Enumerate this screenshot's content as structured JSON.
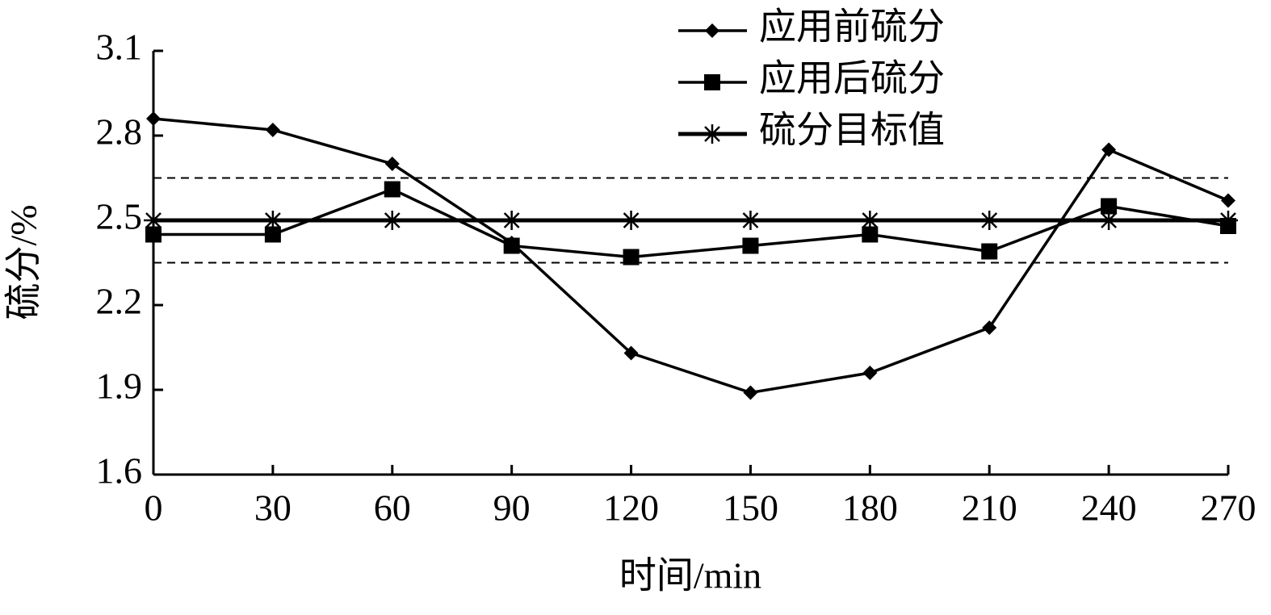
{
  "chart_data": {
    "type": "line",
    "x_label": "时间/min",
    "y_label": "硫分/%",
    "x": [
      0,
      30,
      60,
      90,
      120,
      150,
      180,
      210,
      240,
      270
    ],
    "series": [
      {
        "name": "应用前硫分",
        "color": "#000000",
        "marker": "diamond",
        "values": [
          2.86,
          2.82,
          2.7,
          2.42,
          2.03,
          1.89,
          1.96,
          2.12,
          2.75,
          2.57
        ]
      },
      {
        "name": "应用后硫分",
        "color": "#000000",
        "marker": "square",
        "values": [
          2.45,
          2.45,
          2.61,
          2.41,
          2.37,
          2.41,
          2.45,
          2.39,
          2.55,
          2.48
        ]
      },
      {
        "name": "硫分目标值",
        "color": "#000000",
        "marker": "asterisk",
        "values": [
          2.5,
          2.5,
          2.5,
          2.5,
          2.5,
          2.5,
          2.5,
          2.5,
          2.5,
          2.5
        ]
      }
    ],
    "reference_lines": [
      2.65,
      2.35
    ],
    "xlim": [
      0,
      270
    ],
    "xticks": [
      0,
      30,
      60,
      90,
      120,
      150,
      180,
      210,
      240,
      270
    ],
    "ylim": [
      1.6,
      3.1
    ],
    "yticks": [
      1.6,
      1.9,
      2.2,
      2.5,
      2.8,
      3.1
    ],
    "legend": "top"
  }
}
